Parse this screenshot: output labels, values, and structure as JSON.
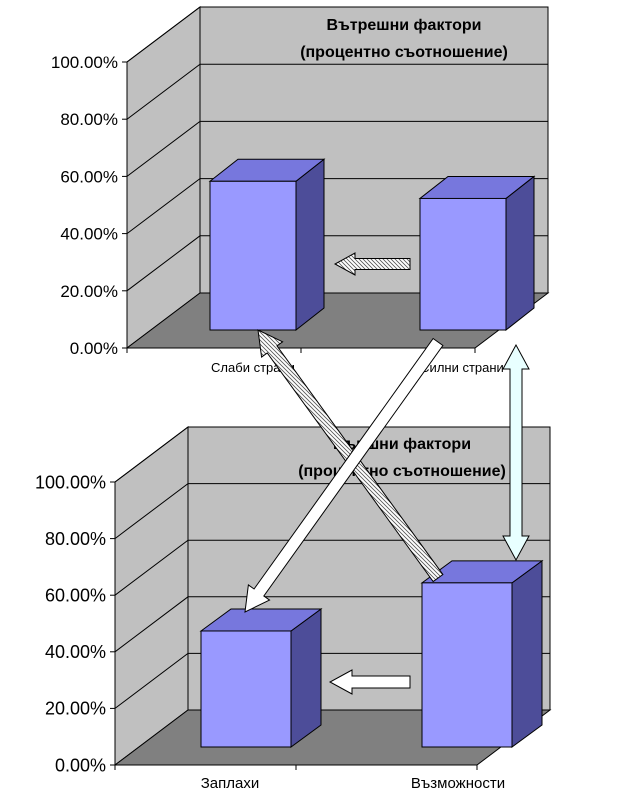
{
  "chart_data": [
    {
      "type": "bar",
      "title": [
        "Вътрешни фактори",
        "(процентно съотношение)"
      ],
      "categories": [
        "Слаби страни",
        "Силни страни"
      ],
      "values": [
        0.52,
        0.46
      ],
      "ylim": [
        0,
        1
      ],
      "yticks": [
        "0.00%",
        "20.00%",
        "40.00%",
        "60.00%",
        "80.00%",
        "100.00%"
      ],
      "grid": true,
      "legend": "none"
    },
    {
      "type": "bar",
      "title": [
        "Външни фактори",
        "(процентно съотношение)"
      ],
      "categories": [
        "Заплахи",
        "Възможности"
      ],
      "values": [
        0.41,
        0.58
      ],
      "ylim": [
        0,
        1
      ],
      "yticks": [
        "0.00%",
        "20.00%",
        "40.00%",
        "60.00%",
        "80.00%",
        "100.00%"
      ],
      "grid": true,
      "legend": "none"
    }
  ],
  "colors": {
    "wall": "#c0c0c0",
    "floor": "#808080",
    "bar_front": "#9999ff",
    "bar_top": "#7777dd",
    "bar_side": "#4d4d99",
    "gridline": "#000000"
  }
}
